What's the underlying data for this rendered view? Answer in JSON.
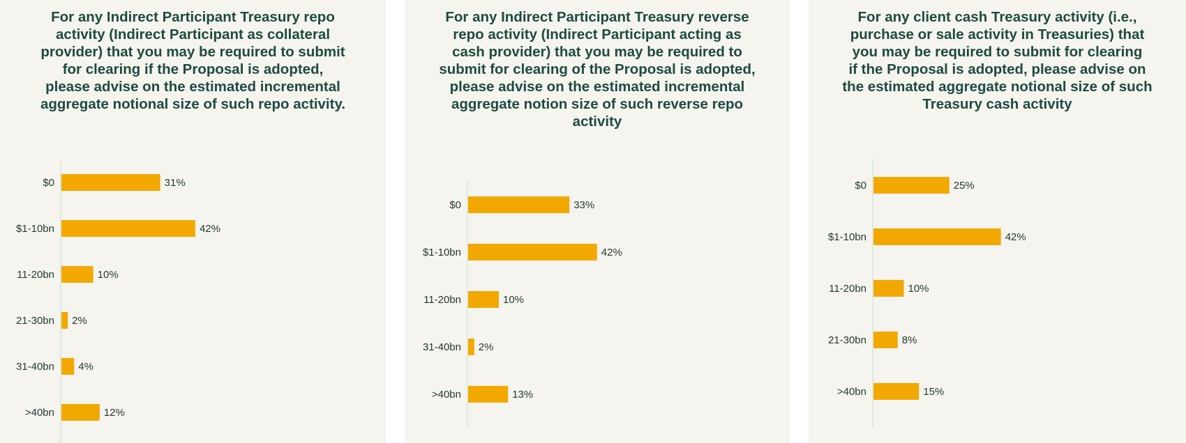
{
  "colors": {
    "bar": "#f2a800",
    "axis": "#d5e6d5",
    "title": "#1e4b3f",
    "text": "#1f3a30",
    "panel": "#f5f4ef"
  },
  "chart_data": [
    {
      "type": "bar",
      "orientation": "horizontal",
      "title": "For any Indirect Participant Treasury repo\nactivity (Indirect Participant as collateral\nprovider) that you may be required to submit\nfor clearing if the Proposal is adopted,\nplease advise on the estimated incremental\naggregate notional size of such repo activity.",
      "categories": [
        "$0",
        "$1-10bn",
        "11-20bn",
        "21-30bn",
        "31-40bn",
        ">40bn"
      ],
      "values": [
        31,
        42,
        10,
        2,
        4,
        12
      ],
      "value_labels": [
        "31%",
        "42%",
        "10%",
        "2%",
        "4%",
        "12%"
      ],
      "unit": "%",
      "grid": false,
      "legend": "none"
    },
    {
      "type": "bar",
      "orientation": "horizontal",
      "title": "For any Indirect Participant Treasury reverse\nrepo activity (Indirect Participant acting as\ncash provider) that you may be required to\nsubmit for clearing of the Proposal is adopted,\nplease advise on the estimated incremental\naggregate notion size of such reverse repo\nactivity",
      "categories": [
        "$0",
        "$1-10bn",
        "11-20bn",
        "31-40bn",
        ">40bn"
      ],
      "values": [
        33,
        42,
        10,
        2,
        13
      ],
      "value_labels": [
        "33%",
        "42%",
        "10%",
        "2%",
        "13%"
      ],
      "unit": "%",
      "grid": false,
      "legend": "none"
    },
    {
      "type": "bar",
      "orientation": "horizontal",
      "title": "For any client cash Treasury activity (i.e.,\npurchase or sale activity in Treasuries) that\nyou may be required to submit for clearing\nif the Proposal is adopted, please advise on\nthe estimated aggregate notional size of such\nTreasury cash activity",
      "categories": [
        "$0",
        "$1-10bn",
        "11-20bn",
        "21-30bn",
        ">40bn"
      ],
      "values": [
        25,
        42,
        10,
        8,
        15
      ],
      "value_labels": [
        "25%",
        "42%",
        "10%",
        "8%",
        "15%"
      ],
      "unit": "%",
      "grid": false,
      "legend": "none"
    }
  ]
}
